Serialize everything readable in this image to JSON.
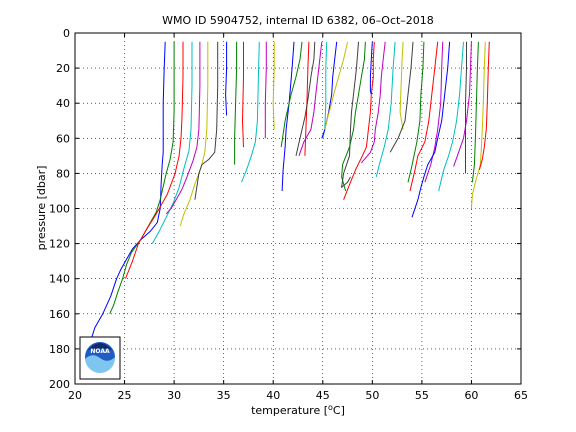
{
  "chart_data": {
    "type": "line",
    "title": "WMO ID 5904752, internal ID 6382, 06–Oct–2018",
    "xlabel": "temperature [",
    "xlabel_unit": "o",
    "xlabel_tail": "C]",
    "ylabel": "pressure [dbar]",
    "xlim": [
      20,
      65
    ],
    "ylim": [
      0,
      200
    ],
    "y_reversed": true,
    "grid": true,
    "x_ticks": [
      20,
      25,
      30,
      35,
      40,
      45,
      50,
      55,
      60,
      65
    ],
    "y_ticks": [
      0,
      20,
      40,
      60,
      80,
      100,
      120,
      140,
      160,
      180,
      200
    ],
    "colors": [
      "#0000ff",
      "#008000",
      "#ff0000",
      "#00bfbf",
      "#bf00bf",
      "#bfbf00",
      "#404040"
    ],
    "logo_text": "NOAA",
    "series": [
      {
        "color": "#0000ff",
        "x": [
          29.1,
          29.0,
          28.9,
          28.9,
          28.9,
          28.8,
          28.7,
          28.6,
          28.3,
          27.6,
          26.6,
          25.8,
          25.1,
          24.6,
          24.2,
          23.6,
          22.8,
          22.0,
          21.6,
          21.3
        ],
        "y": [
          5,
          20,
          40,
          60,
          68,
          75,
          85,
          100,
          108,
          113,
          118,
          123,
          130,
          135,
          140,
          150,
          160,
          168,
          175,
          182
        ]
      },
      {
        "color": "#008000",
        "x": [
          30.0,
          30.0,
          30.0,
          29.9,
          29.6,
          29.2,
          28.8,
          28.6,
          28.2,
          27.4,
          26.6,
          25.7,
          25.2,
          24.8,
          24.3,
          23.9,
          23.5
        ],
        "y": [
          5,
          25,
          45,
          62,
          72,
          80,
          90,
          95,
          102,
          110,
          118,
          125,
          132,
          140,
          148,
          155,
          160
        ]
      },
      {
        "color": "#ff0000",
        "x": [
          30.9,
          30.9,
          30.8,
          30.7,
          30.5,
          30.1,
          29.3,
          28.2,
          27.2,
          26.4,
          25.8,
          25.1
        ],
        "y": [
          5,
          25,
          48,
          60,
          70,
          80,
          92,
          103,
          112,
          120,
          130,
          140
        ]
      },
      {
        "color": "#00bfbf",
        "x": [
          31.8,
          31.8,
          31.7,
          31.5,
          31.0,
          30.5,
          29.9,
          29.2,
          28.5,
          27.8
        ],
        "y": [
          5,
          30,
          55,
          67,
          77,
          88,
          97,
          105,
          113,
          120
        ]
      },
      {
        "color": "#bf00bf",
        "x": [
          32.6,
          32.6,
          32.5,
          32.3,
          31.9,
          31.3,
          30.8,
          30.2,
          29.7,
          29.2
        ],
        "y": [
          5,
          30,
          55,
          65,
          73,
          82,
          89,
          95,
          100,
          103
        ]
      },
      {
        "color": "#bfbf00",
        "x": [
          33.4,
          33.4,
          33.3,
          33.1,
          32.7,
          32.1,
          31.6,
          31.0,
          30.6
        ],
        "y": [
          5,
          30,
          55,
          68,
          77,
          86,
          95,
          103,
          110
        ]
      },
      {
        "color": "#404040",
        "x": [
          34.4,
          34.4,
          34.3,
          34.1,
          33.5,
          32.8,
          32.5,
          32.1
        ],
        "y": [
          5,
          30,
          55,
          68,
          72,
          75,
          80,
          95
        ]
      },
      {
        "color": "#0000ff",
        "x": [
          35.3,
          35.3,
          35.2,
          35.3
        ],
        "y": [
          5,
          20,
          35,
          47
        ]
      },
      {
        "color": "#008000",
        "x": [
          36.3,
          36.3,
          36.2,
          36.1,
          36.1
        ],
        "y": [
          5,
          20,
          40,
          60,
          75
        ]
      },
      {
        "color": "#ff0000",
        "x": [
          37.0,
          37.0,
          36.9,
          37.0
        ],
        "y": [
          5,
          25,
          50,
          65
        ]
      },
      {
        "color": "#00bfbf",
        "x": [
          38.6,
          38.5,
          38.4,
          38.2,
          37.8,
          37.3,
          36.8
        ],
        "y": [
          5,
          25,
          50,
          62,
          70,
          78,
          85
        ]
      },
      {
        "color": "#bf00bf",
        "x": [
          39.3,
          39.3,
          39.2,
          39.2
        ],
        "y": [
          5,
          20,
          40,
          60
        ]
      },
      {
        "color": "#bfbf00",
        "x": [
          40.1,
          40.1,
          40.0,
          40.1
        ],
        "y": [
          5,
          20,
          40,
          55
        ]
      },
      {
        "color": "#0000ff",
        "x": [
          42.1,
          41.9,
          41.6,
          41.3,
          41.2,
          41.0,
          40.9
        ],
        "y": [
          5,
          20,
          40,
          55,
          65,
          78,
          90
        ]
      },
      {
        "color": "#008000",
        "x": [
          42.9,
          42.7,
          42.3,
          41.8,
          41.2,
          40.8
        ],
        "y": [
          5,
          15,
          25,
          35,
          50,
          65
        ]
      },
      {
        "color": "#ff0000",
        "x": [
          43.6,
          43.5,
          43.4,
          43.3,
          43.2
        ],
        "y": [
          5,
          20,
          40,
          55,
          70
        ]
      },
      {
        "color": "#404040",
        "x": [
          44.2,
          44.1,
          43.8,
          43.5,
          43.2,
          42.7,
          42.3
        ],
        "y": [
          5,
          15,
          25,
          38,
          48,
          60,
          70
        ]
      },
      {
        "color": "#bf00bf",
        "x": [
          44.9,
          44.7,
          44.5,
          44.3,
          44.1,
          43.8,
          43.1,
          42.6
        ],
        "y": [
          5,
          15,
          25,
          35,
          45,
          55,
          62,
          70
        ]
      },
      {
        "color": "#00bfbf",
        "x": [
          45.4,
          45.3,
          45.3,
          45.2,
          45.0
        ],
        "y": [
          5,
          20,
          40,
          55,
          60
        ]
      },
      {
        "color": "#0000ff",
        "x": [
          46.4,
          46.2,
          46.0,
          45.9,
          45.6,
          45.2,
          44.9
        ],
        "y": [
          5,
          15,
          25,
          35,
          45,
          55,
          60
        ]
      },
      {
        "color": "#bfbf00",
        "x": [
          47.5,
          47.1,
          46.6,
          46.1,
          45.8,
          45.5,
          45.2
        ],
        "y": [
          5,
          15,
          25,
          35,
          42,
          48,
          55
        ]
      },
      {
        "color": "#404040",
        "x": [
          48.6,
          48.4,
          48.1,
          47.9,
          47.8,
          47.7,
          47.1,
          46.9,
          47.5,
          47.8
        ],
        "y": [
          5,
          20,
          35,
          45,
          55,
          70,
          80,
          88,
          85,
          82
        ]
      },
      {
        "color": "#008000",
        "x": [
          49.3,
          49.2,
          48.9,
          48.6,
          48.3,
          48.1,
          47.7,
          47.0,
          46.9,
          47.3
        ],
        "y": [
          5,
          15,
          25,
          35,
          45,
          55,
          65,
          75,
          82,
          90
        ]
      },
      {
        "color": "#ff0000",
        "x": [
          50.2,
          50.1,
          50.1,
          49.9,
          49.8,
          49.6,
          49.4,
          49.0,
          48.3,
          47.8,
          47.1
        ],
        "y": [
          5,
          15,
          25,
          35,
          45,
          55,
          65,
          70,
          78,
          85,
          95
        ]
      },
      {
        "color": "#bf00bf",
        "x": [
          51.3,
          51.1,
          50.9,
          50.8,
          50.6,
          50.3,
          50.2,
          49.8,
          48.9
        ],
        "y": [
          5,
          15,
          25,
          35,
          45,
          55,
          62,
          68,
          74
        ]
      },
      {
        "color": "#0000ff",
        "x": [
          50.0,
          49.9,
          49.8,
          49.8,
          49.9
        ],
        "y": [
          5,
          15,
          25,
          33,
          35
        ]
      },
      {
        "color": "#00bfbf",
        "x": [
          52.3,
          52.1,
          51.9,
          51.6,
          51.2,
          50.7,
          50.4
        ],
        "y": [
          5,
          20,
          40,
          55,
          65,
          75,
          82
        ]
      },
      {
        "color": "#bfbf00",
        "x": [
          53.1,
          53.0,
          52.9,
          52.8,
          53.0,
          53.1
        ],
        "y": [
          5,
          15,
          30,
          45,
          52,
          55
        ]
      },
      {
        "color": "#404040",
        "x": [
          54.1,
          53.9,
          53.6,
          53.3,
          52.6,
          51.8
        ],
        "y": [
          5,
          20,
          35,
          50,
          60,
          68
        ]
      },
      {
        "color": "#008000",
        "x": [
          55.2,
          55.1,
          54.9,
          54.8,
          54.5,
          54.2,
          53.9,
          53.6
        ],
        "y": [
          5,
          20,
          35,
          50,
          62,
          70,
          78,
          85
        ]
      },
      {
        "color": "#ff0000",
        "x": [
          56.6,
          56.3,
          56.0,
          55.7,
          55.3,
          54.6,
          54.3,
          53.8
        ],
        "y": [
          5,
          20,
          35,
          50,
          62,
          70,
          78,
          90
        ]
      },
      {
        "color": "#bf00bf",
        "x": [
          57.1,
          57.0,
          56.9,
          56.6,
          56.3,
          55.9,
          55.3
        ],
        "y": [
          5,
          20,
          40,
          55,
          65,
          75,
          85
        ]
      },
      {
        "color": "#0000ff",
        "x": [
          57.8,
          57.6,
          57.3,
          57.0,
          56.6,
          56.3,
          55.6,
          55.2,
          54.9,
          54.6,
          54.0
        ],
        "y": [
          5,
          20,
          35,
          50,
          60,
          68,
          75,
          82,
          88,
          95,
          105
        ]
      },
      {
        "color": "#00bfbf",
        "x": [
          59.2,
          59.0,
          58.8,
          58.5,
          58.1,
          57.7,
          57.2,
          56.9,
          56.7
        ],
        "y": [
          5,
          20,
          35,
          50,
          62,
          70,
          78,
          85,
          90
        ]
      },
      {
        "color": "#bf00bf",
        "x": [
          60.0,
          59.9,
          59.8,
          59.5,
          59.2,
          58.7,
          58.2
        ],
        "y": [
          5,
          20,
          35,
          50,
          60,
          68,
          76
        ]
      },
      {
        "color": "#404040",
        "x": [
          59.5,
          59.5,
          59.4,
          59.4,
          59.4
        ],
        "y": [
          5,
          20,
          40,
          60,
          80
        ]
      },
      {
        "color": "#008000",
        "x": [
          60.7,
          60.6,
          60.5,
          60.4,
          60.3,
          60.1
        ],
        "y": [
          5,
          20,
          40,
          60,
          75,
          85
        ]
      },
      {
        "color": "#bfbf00",
        "x": [
          61.4,
          61.3,
          61.2,
          61.1,
          61.0,
          60.9,
          60.4,
          60.1,
          60.0
        ],
        "y": [
          5,
          20,
          40,
          55,
          65,
          75,
          85,
          92,
          100
        ]
      },
      {
        "color": "#ff0000",
        "x": [
          61.8,
          61.7,
          61.6,
          61.5,
          61.3,
          61.1,
          60.8
        ],
        "y": [
          5,
          20,
          40,
          55,
          65,
          72,
          78
        ]
      }
    ]
  }
}
